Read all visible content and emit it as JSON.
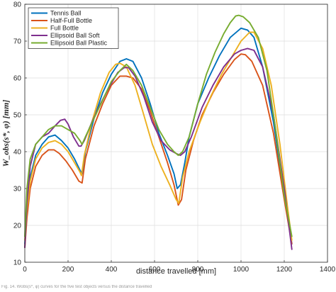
{
  "caption": "Fig. 14. Wobs(s*, φ) curves for the five test objects versus the distance travelled",
  "chart_data": {
    "type": "line",
    "xlabel": "distance travelled [mm]",
    "ylabel": "W_obs(s*, φ)  [mm]",
    "xlim": [
      0,
      1400
    ],
    "ylim": [
      10,
      80
    ],
    "xticks": [
      0,
      200,
      400,
      600,
      800,
      1000,
      1200,
      1400
    ],
    "yticks": [
      10,
      20,
      30,
      40,
      50,
      60,
      70,
      80
    ],
    "grid": true,
    "legend_position": "top-left",
    "series": [
      {
        "name": "Tennis Ball",
        "color": "#0072BD",
        "x": [
          0,
          10,
          25,
          50,
          80,
          110,
          140,
          170,
          200,
          230,
          255,
          265,
          280,
          320,
          360,
          400,
          440,
          470,
          500,
          540,
          580,
          620,
          660,
          690,
          705,
          720,
          740,
          760,
          800,
          850,
          900,
          950,
          1000,
          1030,
          1060,
          1100,
          1150,
          1200,
          1235
        ],
        "y": [
          15,
          25,
          33,
          39,
          42,
          44,
          44.5,
          43,
          41,
          38,
          35,
          34,
          40,
          49,
          56,
          61,
          64.5,
          65.2,
          64.5,
          60,
          53,
          45,
          39,
          34,
          30,
          31,
          37,
          44,
          53,
          60,
          66,
          71,
          73.5,
          73,
          71,
          63,
          48,
          28,
          15
        ]
      },
      {
        "name": "Half-Full Bottle",
        "color": "#D95319",
        "x": [
          0,
          10,
          25,
          50,
          80,
          110,
          135,
          160,
          190,
          220,
          250,
          265,
          280,
          320,
          360,
          400,
          440,
          470,
          500,
          540,
          580,
          620,
          660,
          690,
          710,
          725,
          745,
          780,
          820,
          870,
          920,
          970,
          1000,
          1020,
          1050,
          1100,
          1150,
          1200,
          1235
        ],
        "y": [
          14,
          22,
          30,
          36,
          39,
          40.5,
          40.5,
          39.5,
          37.5,
          35,
          32,
          31.5,
          38,
          47,
          53,
          58,
          60.5,
          60.5,
          60,
          57,
          51,
          44,
          37,
          31,
          25.5,
          27,
          35,
          43,
          50,
          56,
          61,
          65,
          66.5,
          66.3,
          64.5,
          58,
          45,
          27,
          15
        ]
      },
      {
        "name": "Full Bottle",
        "color": "#EDB120",
        "x": [
          0,
          10,
          25,
          50,
          80,
          110,
          140,
          170,
          200,
          230,
          255,
          262,
          275,
          310,
          350,
          390,
          420,
          440,
          470,
          510,
          550,
          590,
          630,
          670,
          700,
          712,
          730,
          760,
          810,
          860,
          910,
          960,
          1000,
          1040,
          1060,
          1100,
          1140,
          1180,
          1215,
          1235
        ],
        "y": [
          16,
          24,
          32,
          38,
          41,
          42.5,
          43,
          42,
          40,
          37,
          34.5,
          33.5,
          39,
          48,
          56,
          61.5,
          63.7,
          64,
          63,
          58,
          50,
          42,
          36,
          31,
          27,
          26,
          33,
          40,
          48,
          55,
          61,
          66,
          70,
          72.4,
          72.4,
          68,
          58,
          42,
          25,
          16
        ]
      },
      {
        "name": "Ellipsoid Ball Soft",
        "color": "#7E2F8E",
        "x": [
          0,
          10,
          25,
          50,
          80,
          110,
          140,
          165,
          185,
          200,
          225,
          250,
          260,
          275,
          310,
          350,
          390,
          430,
          460,
          480,
          510,
          550,
          590,
          630,
          670,
          700,
          720,
          740,
          770,
          820,
          870,
          920,
          970,
          1000,
          1030,
          1060,
          1100,
          1150,
          1200,
          1235
        ],
        "y": [
          14,
          26,
          36,
          42,
          44,
          45,
          47,
          48.5,
          48.8,
          47.5,
          44,
          41.5,
          41.5,
          43,
          48,
          53,
          57.5,
          61.5,
          62.8,
          62.8,
          60.5,
          55,
          48,
          43,
          40.5,
          39.5,
          39,
          40,
          44,
          52,
          58,
          63,
          66.5,
          67.5,
          68,
          67.5,
          63,
          50,
          30,
          13.5
        ]
      },
      {
        "name": "Ellipsoid Ball Plastic",
        "color": "#77AC30",
        "x": [
          0,
          10,
          25,
          50,
          80,
          110,
          140,
          170,
          200,
          230,
          255,
          265,
          280,
          320,
          360,
          400,
          440,
          470,
          500,
          540,
          580,
          620,
          660,
          690,
          710,
          730,
          760,
          800,
          840,
          880,
          920,
          950,
          975,
          990,
          1010,
          1040,
          1080,
          1120,
          1160,
          1200,
          1235
        ],
        "y": [
          17,
          30,
          38,
          42,
          44,
          46,
          47,
          47,
          46,
          45,
          43,
          42,
          44,
          49,
          54,
          59,
          62,
          63.7,
          62,
          58,
          52,
          46,
          42,
          40,
          39,
          40,
          44,
          53,
          61,
          67,
          72,
          75,
          76.8,
          77,
          76.6,
          75,
          71,
          62,
          46,
          28,
          17
        ]
      }
    ]
  }
}
